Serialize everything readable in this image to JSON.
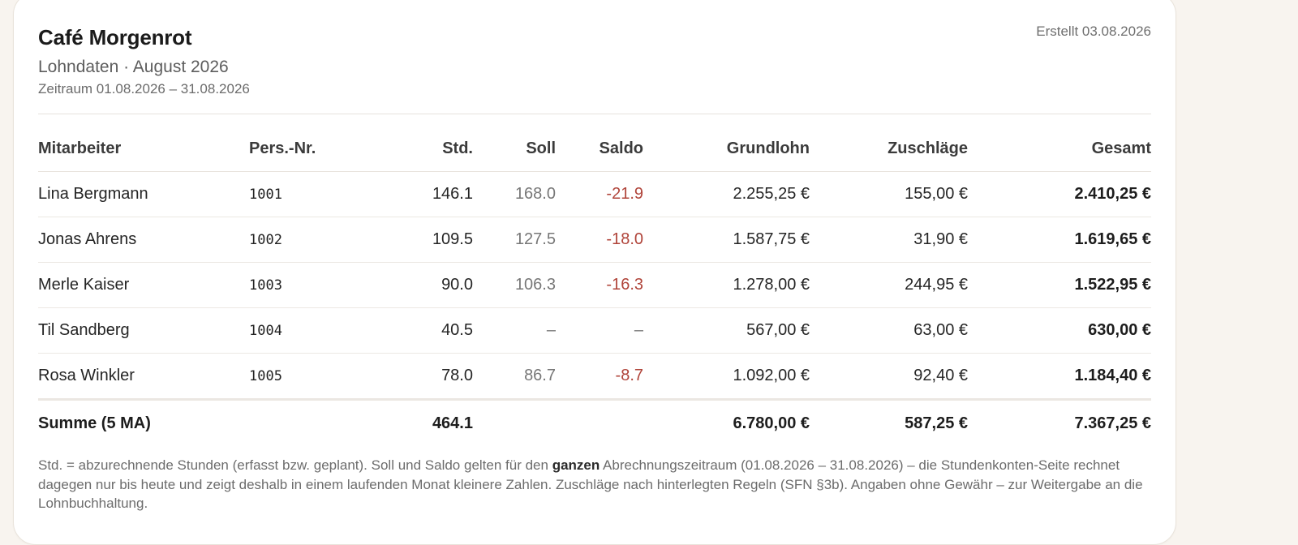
{
  "header": {
    "company": "Café Morgenrot",
    "subtitle": "Lohndaten · August 2026",
    "period": "Zeitraum 01.08.2026 – 31.08.2026",
    "created": "Erstellt 03.08.2026"
  },
  "table": {
    "columns": {
      "employee": "Mitarbeiter",
      "pers_nr": "Pers.-Nr.",
      "hours": "Std.",
      "target": "Soll",
      "balance": "Saldo",
      "base_pay": "Grundlohn",
      "surcharges": "Zuschläge",
      "total": "Gesamt"
    },
    "rows": [
      {
        "employee": "Lina Bergmann",
        "pers_nr": "1001",
        "hours": "146.1",
        "target": "168.0",
        "balance": "-21.9",
        "base_pay": "2.255,25 €",
        "surcharges": "155,00 €",
        "total": "2.410,25 €"
      },
      {
        "employee": "Jonas Ahrens",
        "pers_nr": "1002",
        "hours": "109.5",
        "target": "127.5",
        "balance": "-18.0",
        "base_pay": "1.587,75 €",
        "surcharges": "31,90 €",
        "total": "1.619,65 €"
      },
      {
        "employee": "Merle Kaiser",
        "pers_nr": "1003",
        "hours": "90.0",
        "target": "106.3",
        "balance": "-16.3",
        "base_pay": "1.278,00 €",
        "surcharges": "244,95 €",
        "total": "1.522,95 €"
      },
      {
        "employee": "Til Sandberg",
        "pers_nr": "1004",
        "hours": "40.5",
        "target": "–",
        "balance": "–",
        "base_pay": "567,00 €",
        "surcharges": "63,00 €",
        "total": "630,00 €"
      },
      {
        "employee": "Rosa Winkler",
        "pers_nr": "1005",
        "hours": "78.0",
        "target": "86.7",
        "balance": "-8.7",
        "base_pay": "1.092,00 €",
        "surcharges": "92,40 €",
        "total": "1.184,40 €"
      }
    ],
    "summary": {
      "label": "Summe (5 MA)",
      "hours": "464.1",
      "base_pay": "6.780,00 €",
      "surcharges": "587,25 €",
      "total": "7.367,25 €"
    }
  },
  "footnote": {
    "part1": "Std. = abzurechnende Stunden (erfasst bzw. geplant). Soll und Saldo gelten für den ",
    "emphasis": "ganzen",
    "part2": " Abrechnungszeitraum (01.08.2026 – 31.08.2026) – die Stundenkonten-Seite rechnet dagegen nur bis heute und zeigt deshalb in einem laufenden Monat kleinere Zahlen. Zuschläge nach hinterlegten Regeln (SFN §3b). Angaben ohne Gewähr – zur Weitergabe an die Lohnbuchhaltung."
  },
  "colors": {
    "negative": "#b0443a",
    "muted": "#777777",
    "background": "#f8f4ef",
    "card": "#ffffff"
  }
}
